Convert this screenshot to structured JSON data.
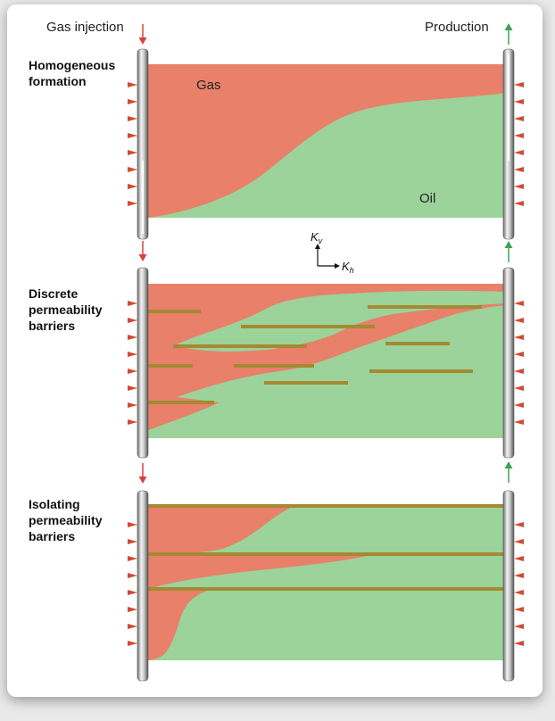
{
  "header": {
    "left": "Gas injection",
    "right": "Production"
  },
  "panels": [
    {
      "title_lines": [
        "Homogeneous",
        "formation"
      ],
      "gas_label": "Gas",
      "oil_label": "Oil"
    },
    {
      "title_lines": [
        "Discrete",
        "permeability",
        "barriers"
      ]
    },
    {
      "title_lines": [
        "Isolating",
        "permeability",
        "barriers"
      ]
    }
  ],
  "axes": {
    "vertical": "K",
    "vertical_sub": "v",
    "horizontal": "K",
    "horizontal_sub": "h"
  },
  "colors": {
    "gas": "#e8806a",
    "oil": "#9cd39a",
    "barrier": "#a48a33",
    "injection_arrow": "#d8413a",
    "production_arrow": "#3fa352",
    "well": "#a8a8a8"
  }
}
